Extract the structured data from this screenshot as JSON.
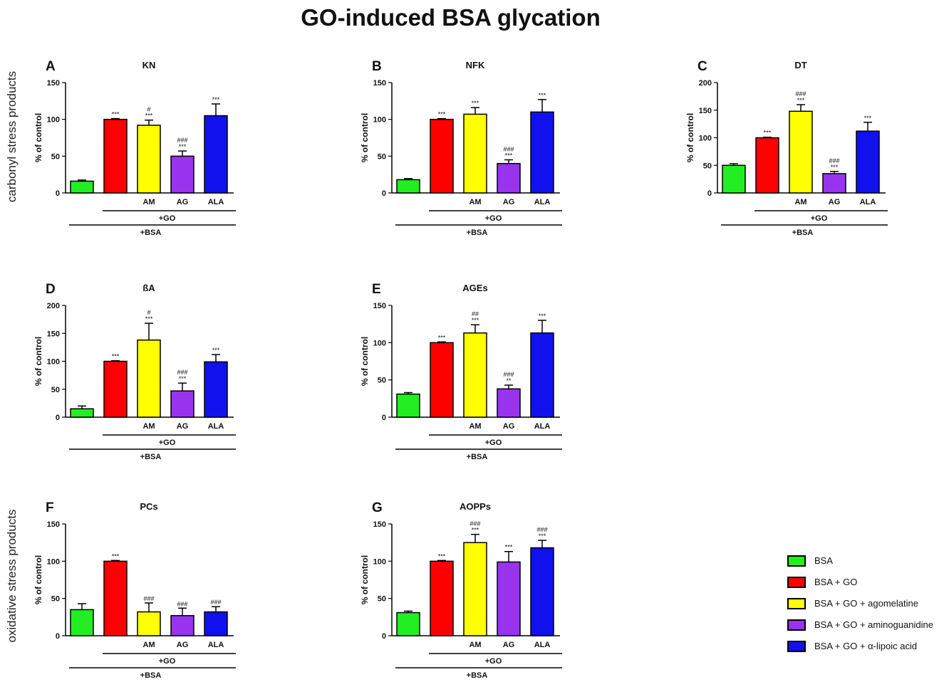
{
  "title": "GO-induced BSA glycation",
  "row_labels": {
    "carbonyl": "carbonyl stress products",
    "oxidative": "oxidative stress products"
  },
  "colors": {
    "BSA": "#22ee22",
    "GO": "#ff0000",
    "AM": "#ffff00",
    "AG": "#9933ee",
    "ALA": "#1111ee"
  },
  "legend": [
    {
      "label": "BSA",
      "color": "#22ee22"
    },
    {
      "label": "BSA + GO",
      "color": "#ff0000"
    },
    {
      "label": "BSA + GO + agomelatine",
      "color": "#ffff00"
    },
    {
      "label": "BSA + GO + aminoguanidine",
      "color": "#9933ee"
    },
    {
      "label": "BSA + GO + α-lipoic acid",
      "color": "#1111ee"
    }
  ],
  "chart_data": [
    {
      "type": "bar",
      "panel": "A",
      "title": "KN",
      "ylabel": "% of control",
      "ylim": [
        0,
        150
      ],
      "yticks": [
        0,
        50,
        100,
        150
      ],
      "categories": [
        "",
        "",
        "AM",
        "AG",
        "ALA"
      ],
      "groups": [
        "+GO",
        "+BSA"
      ],
      "values": [
        16,
        100,
        92,
        50,
        105
      ],
      "errors": [
        1.5,
        1,
        7,
        7,
        16
      ],
      "annotations": [
        [],
        [
          "***"
        ],
        [
          "#",
          "***"
        ],
        [
          "###",
          "***"
        ],
        [
          "***"
        ]
      ]
    },
    {
      "type": "bar",
      "panel": "B",
      "title": "NFK",
      "ylabel": "% of control",
      "ylim": [
        0,
        150
      ],
      "yticks": [
        0,
        50,
        100,
        150
      ],
      "categories": [
        "",
        "",
        "AM",
        "AG",
        "ALA"
      ],
      "groups": [
        "+GO",
        "+BSA"
      ],
      "values": [
        18,
        100,
        107,
        40,
        110
      ],
      "errors": [
        1.5,
        1,
        9,
        5,
        17
      ],
      "annotations": [
        [],
        [
          "***"
        ],
        [
          "***"
        ],
        [
          "###",
          "***"
        ],
        [
          "***"
        ]
      ]
    },
    {
      "type": "bar",
      "panel": "C",
      "title": "DT",
      "ylabel": "% of control",
      "ylim": [
        0,
        200
      ],
      "yticks": [
        0,
        50,
        100,
        150,
        200
      ],
      "categories": [
        "",
        "",
        "AM",
        "AG",
        "ALA"
      ],
      "groups": [
        "+GO",
        "+BSA"
      ],
      "values": [
        50,
        100,
        148,
        35,
        112
      ],
      "errors": [
        3,
        1,
        12,
        4,
        16
      ],
      "annotations": [
        [],
        [
          "***"
        ],
        [
          "###",
          "***"
        ],
        [
          "###",
          "***"
        ],
        [
          "***"
        ]
      ]
    },
    {
      "type": "bar",
      "panel": "D",
      "title": "ßA",
      "ylabel": "% of control",
      "ylim": [
        0,
        200
      ],
      "yticks": [
        0,
        50,
        100,
        150,
        200
      ],
      "categories": [
        "",
        "",
        "AM",
        "AG",
        "ALA"
      ],
      "groups": [
        "+GO",
        "+BSA"
      ],
      "values": [
        15,
        100,
        138,
        47,
        99
      ],
      "errors": [
        5,
        1,
        30,
        14,
        13
      ],
      "annotations": [
        [],
        [
          "***"
        ],
        [
          "#",
          "***"
        ],
        [
          "###",
          "***"
        ],
        [
          "***"
        ]
      ]
    },
    {
      "type": "bar",
      "panel": "E",
      "title": "AGEs",
      "ylabel": "% of control",
      "ylim": [
        0,
        150
      ],
      "yticks": [
        0,
        50,
        100,
        150
      ],
      "categories": [
        "",
        "",
        "AM",
        "AG",
        "ALA"
      ],
      "groups": [
        "+GO",
        "+BSA"
      ],
      "values": [
        31,
        100,
        113,
        38,
        113
      ],
      "errors": [
        2,
        1,
        11,
        5,
        17
      ],
      "annotations": [
        [],
        [
          "***"
        ],
        [
          "##",
          "***"
        ],
        [
          "###",
          "**"
        ],
        [
          "***"
        ]
      ]
    },
    {
      "type": "bar",
      "panel": "F",
      "title": "PCs",
      "ylabel": "% of control",
      "ylim": [
        0,
        150
      ],
      "yticks": [
        0,
        50,
        100,
        150
      ],
      "categories": [
        "",
        "",
        "AM",
        "AG",
        "ALA"
      ],
      "groups": [
        "+GO",
        "+BSA"
      ],
      "values": [
        35,
        100,
        32,
        27,
        32
      ],
      "errors": [
        8,
        1,
        12,
        10,
        7
      ],
      "annotations": [
        [],
        [
          "***"
        ],
        [
          "###"
        ],
        [
          "###"
        ],
        [
          "###"
        ]
      ]
    },
    {
      "type": "bar",
      "panel": "G",
      "title": "AOPPs",
      "ylabel": "% of control",
      "ylim": [
        0,
        150
      ],
      "yticks": [
        0,
        50,
        100,
        150
      ],
      "categories": [
        "",
        "",
        "AM",
        "AG",
        "ALA"
      ],
      "groups": [
        "+GO",
        "+BSA"
      ],
      "values": [
        31,
        100,
        125,
        99,
        118
      ],
      "errors": [
        2,
        1,
        11,
        14,
        10
      ],
      "annotations": [
        [],
        [
          "***"
        ],
        [
          "###",
          "***"
        ],
        [
          "***"
        ],
        [
          "###",
          "***"
        ]
      ]
    }
  ]
}
